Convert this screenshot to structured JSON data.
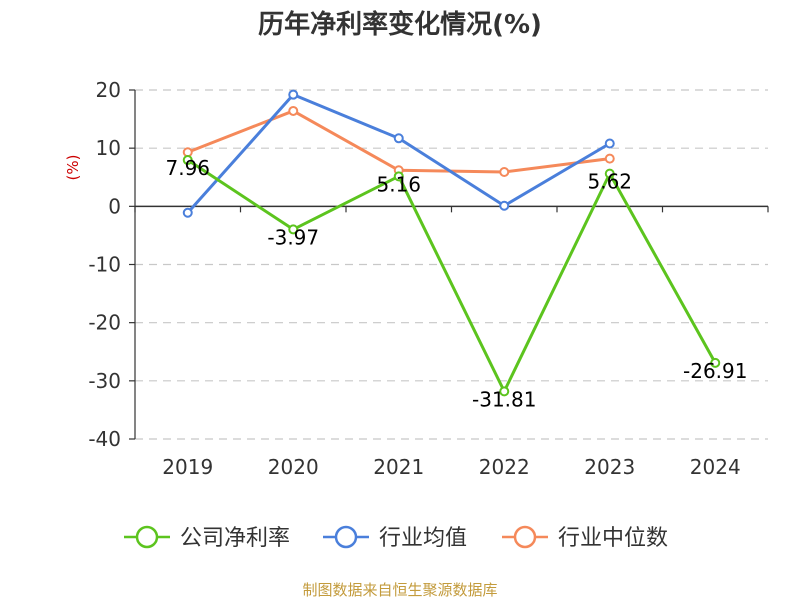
{
  "title": "历年净利率变化情况(%)",
  "source": "制图数据来自恒生聚源数据库",
  "chart_data": {
    "type": "line",
    "title": "历年净利率变化情况(%)",
    "ylabel": "(%)",
    "xlabel": "",
    "categories": [
      "2019",
      "2020",
      "2021",
      "2022",
      "2023",
      "2024"
    ],
    "ylim": [
      -40,
      20
    ],
    "yticks": [
      20,
      10,
      0,
      -10,
      -20,
      -30,
      -40
    ],
    "grid": true,
    "legend": "bottom",
    "series": [
      {
        "name": "公司净利率",
        "color": "#5cc41e",
        "values": [
          7.96,
          -3.97,
          5.16,
          -31.81,
          5.62,
          -26.91
        ],
        "labels": [
          "7.96",
          "-3.97",
          "5.16",
          "-31.81",
          "5.62",
          "-26.91"
        ]
      },
      {
        "name": "行业均值",
        "color": "#4a7fdb",
        "values": [
          -1.1,
          19.2,
          11.7,
          0.1,
          10.8,
          null
        ]
      },
      {
        "name": "行业中位数",
        "color": "#f5895a",
        "values": [
          9.3,
          16.4,
          6.2,
          5.9,
          8.2,
          null
        ]
      }
    ]
  }
}
